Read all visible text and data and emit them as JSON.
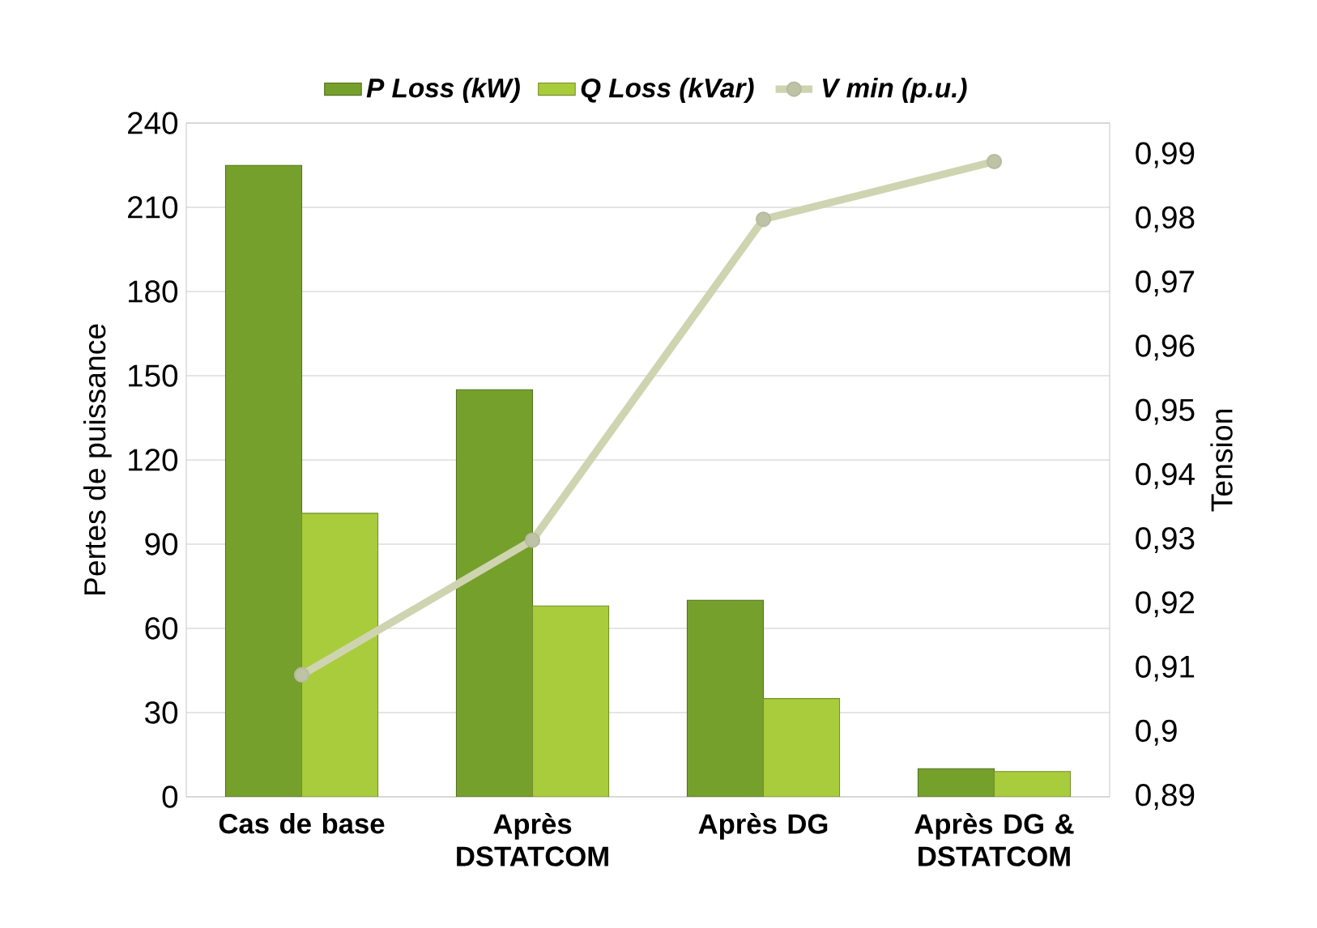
{
  "chart_data": {
    "type": "bar",
    "ylabel": "Pertes de puissance",
    "y2label": "Tension",
    "categories": [
      "Cas de base",
      "Après DSTATCOM",
      "Après DG",
      "Après DG & DSTATCOM"
    ],
    "series": [
      {
        "name": "P Loss (kW)",
        "color": "#76a02c",
        "values": [
          225,
          145,
          70,
          10
        ]
      },
      {
        "name": "Q Loss (kVar)",
        "color": "#a8cc3c",
        "values": [
          101,
          68,
          35,
          9
        ]
      },
      {
        "name": "V min (p.u.)",
        "type": "line",
        "axis": "y2",
        "color": "#cfd4b0",
        "marker": "circle",
        "line_style": "solid",
        "values": [
          0.909,
          0.93,
          0.98,
          0.989
        ]
      }
    ],
    "ylim": [
      0,
      240
    ],
    "yticks": [
      0,
      30,
      60,
      90,
      120,
      150,
      180,
      210,
      240
    ],
    "y2lim": [
      0.89,
      0.995
    ],
    "y2ticks": [
      {
        "value": 0.89,
        "label": "0,89"
      },
      {
        "value": 0.9,
        "label": "0,9"
      },
      {
        "value": 0.91,
        "label": "0,91"
      },
      {
        "value": 0.92,
        "label": "0,92"
      },
      {
        "value": 0.93,
        "label": "0,93"
      },
      {
        "value": 0.94,
        "label": "0,94"
      },
      {
        "value": 0.95,
        "label": "0,95"
      },
      {
        "value": 0.96,
        "label": "0,96"
      },
      {
        "value": 0.97,
        "label": "0,97"
      },
      {
        "value": 0.98,
        "label": "0,98"
      },
      {
        "value": 0.99,
        "label": "0,99"
      }
    ],
    "grid": "y",
    "legend": "top"
  }
}
